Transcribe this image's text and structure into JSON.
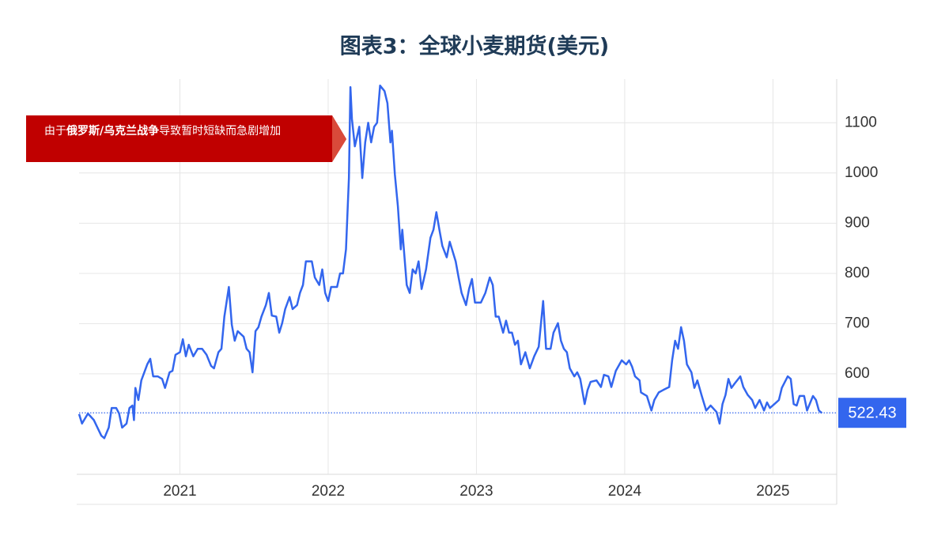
{
  "chart_data": {
    "type": "line",
    "title": "图表3：全球小麦期货(美元)",
    "annotation": [
      "由于",
      "俄罗斯/乌克兰战争",
      "导致暂时短缺而急剧增加"
    ],
    "color": "#3366ee",
    "last_value": 522.43,
    "xlim": [
      2020.32,
      2025.43
    ],
    "xticks": [
      2021,
      2022,
      2023,
      2024,
      2025
    ],
    "ylim": [
      400,
      1187
    ],
    "yticks": [
      600,
      700,
      800,
      900,
      1000,
      1100
    ],
    "grid": true,
    "x": [
      2020.32,
      2020.34,
      2020.38,
      2020.42,
      2020.47,
      2020.49,
      2020.52,
      2020.54,
      2020.57,
      2020.59,
      2020.61,
      2020.64,
      2020.66,
      2020.68,
      2020.69,
      2020.7,
      2020.72,
      2020.74,
      2020.78,
      2020.8,
      2020.82,
      2020.85,
      2020.88,
      2020.9,
      2020.93,
      2020.95,
      2020.97,
      2021.0,
      2021.02,
      2021.04,
      2021.06,
      2021.09,
      2021.12,
      2021.15,
      2021.18,
      2021.21,
      2021.23,
      2021.26,
      2021.28,
      2021.3,
      2021.33,
      2021.35,
      2021.37,
      2021.39,
      2021.43,
      2021.45,
      2021.47,
      2021.49,
      2021.51,
      2021.53,
      2021.55,
      2021.58,
      2021.6,
      2021.62,
      2021.65,
      2021.67,
      2021.69,
      2021.71,
      2021.74,
      2021.76,
      2021.79,
      2021.81,
      2021.83,
      2021.85,
      2021.89,
      2021.91,
      2021.94,
      2021.96,
      2021.98,
      2022.0,
      2022.02,
      2022.06,
      2022.08,
      2022.1,
      2022.12,
      2022.14,
      2022.15,
      2022.16,
      2022.18,
      2022.21,
      2022.23,
      2022.25,
      2022.27,
      2022.29,
      2022.31,
      2022.33,
      2022.35,
      2022.38,
      2022.4,
      2022.42,
      2022.43,
      2022.45,
      2022.47,
      2022.49,
      2022.5,
      2022.53,
      2022.55,
      2022.57,
      2022.59,
      2022.61,
      2022.63,
      2022.66,
      2022.69,
      2022.71,
      2022.73,
      2022.75,
      2022.77,
      2022.8,
      2022.82,
      2022.86,
      2022.88,
      2022.9,
      2022.93,
      2022.95,
      2022.97,
      2022.99,
      2023.03,
      2023.06,
      2023.09,
      2023.11,
      2023.13,
      2023.15,
      2023.18,
      2023.2,
      2023.22,
      2023.24,
      2023.26,
      2023.28,
      2023.3,
      2023.33,
      2023.36,
      2023.39,
      2023.42,
      2023.45,
      2023.47,
      2023.5,
      2023.52,
      2023.55,
      2023.57,
      2023.59,
      2023.61,
      2023.63,
      2023.66,
      2023.68,
      2023.7,
      2023.73,
      2023.75,
      2023.77,
      2023.81,
      2023.84,
      2023.86,
      2023.89,
      2023.91,
      2023.94,
      2023.98,
      2024.01,
      2024.03,
      2024.05,
      2024.07,
      2024.1,
      2024.11,
      2024.15,
      2024.18,
      2024.2,
      2024.23,
      2024.26,
      2024.3,
      2024.32,
      2024.34,
      2024.36,
      2024.38,
      2024.4,
      2024.42,
      2024.45,
      2024.47,
      2024.49,
      2024.52,
      2024.55,
      2024.58,
      2024.62,
      2024.64,
      2024.66,
      2024.68,
      2024.7,
      2024.72,
      2024.74,
      2024.78,
      2024.8,
      2024.83,
      2024.86,
      2024.88,
      2024.91,
      2024.94,
      2024.96,
      2024.98,
      2025.01,
      2025.04,
      2025.06,
      2025.1,
      2025.12,
      2025.14,
      2025.16,
      2025.18,
      2025.21,
      2025.23,
      2025.27,
      2025.29,
      2025.31,
      2025.33
    ],
    "values": [
      520,
      501,
      521,
      508,
      477,
      472,
      493,
      532,
      532,
      521,
      493,
      501,
      532,
      537,
      508,
      572,
      548,
      587,
      619,
      630,
      595,
      595,
      590,
      572,
      603,
      606,
      638,
      643,
      669,
      635,
      658,
      635,
      650,
      650,
      638,
      616,
      611,
      643,
      650,
      714,
      773,
      698,
      666,
      685,
      674,
      650,
      643,
      603,
      685,
      693,
      714,
      737,
      761,
      716,
      714,
      682,
      701,
      729,
      753,
      729,
      737,
      761,
      777,
      824,
      824,
      792,
      777,
      808,
      761,
      745,
      773,
      773,
      800,
      800,
      848,
      990,
      1171,
      1108,
      1053,
      1092,
      990,
      1061,
      1100,
      1061,
      1092,
      1100,
      1174,
      1163,
      1139,
      1061,
      1084,
      997,
      934,
      848,
      887,
      777,
      761,
      808,
      800,
      824,
      769,
      808,
      871,
      887,
      922,
      887,
      855,
      832,
      863,
      824,
      792,
      761,
      737,
      769,
      789,
      742,
      742,
      761,
      792,
      777,
      714,
      714,
      682,
      706,
      682,
      682,
      658,
      666,
      619,
      643,
      611,
      635,
      654,
      745,
      650,
      650,
      682,
      701,
      666,
      650,
      643,
      611,
      595,
      603,
      590,
      540,
      568,
      584,
      587,
      574,
      598,
      595,
      574,
      606,
      627,
      619,
      627,
      614,
      595,
      587,
      563,
      556,
      527,
      548,
      563,
      568,
      574,
      627,
      666,
      650,
      693,
      666,
      619,
      603,
      572,
      587,
      556,
      527,
      537,
      524,
      501,
      540,
      558,
      590,
      572,
      580,
      595,
      574,
      558,
      548,
      532,
      548,
      527,
      543,
      532,
      540,
      548,
      572,
      595,
      590,
      540,
      537,
      556,
      556,
      527,
      556,
      548,
      527,
      522
    ]
  }
}
